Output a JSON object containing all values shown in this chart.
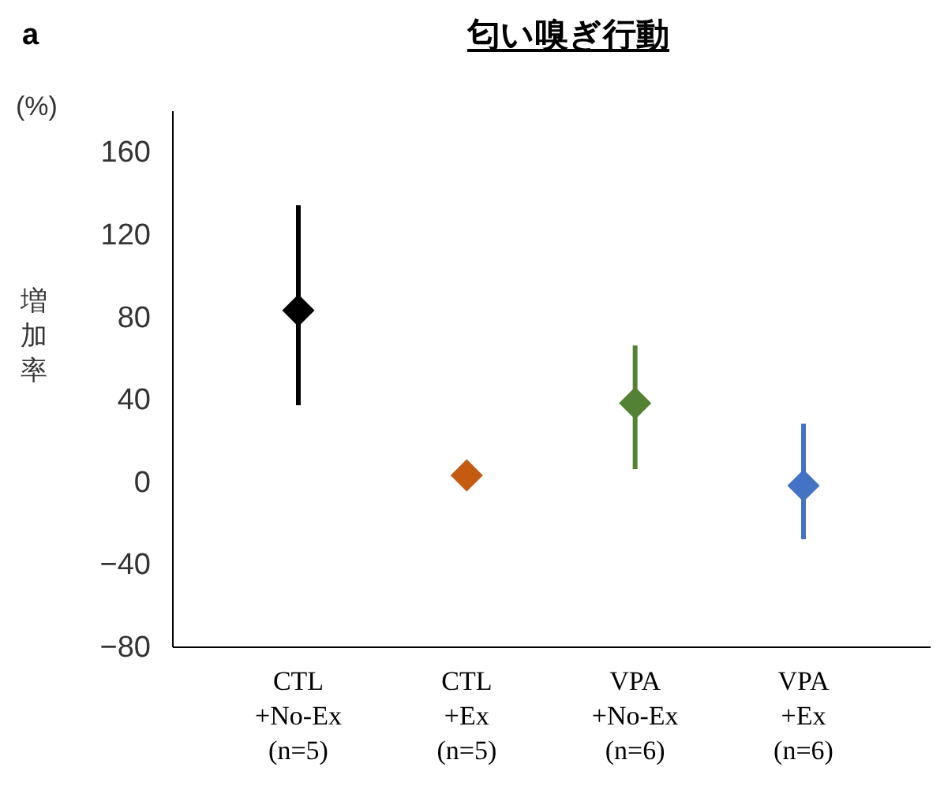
{
  "chart_data": {
    "type": "scatter",
    "title": "匂い嗅ぎ行動",
    "ylabel": "増加率",
    "annotations": [
      "a",
      "(%)"
    ],
    "categories": [
      "CTL\n+No-Ex\n(n=5)",
      "CTL\n+Ex\n(n=5)",
      "VPA\n+No-Ex\n(n=6)",
      "VPA\n+Ex\n(n=6)"
    ],
    "values": [
      83,
      3,
      38,
      -2
    ],
    "errors": [
      [
        37,
        134
      ],
      null,
      [
        6,
        66
      ],
      [
        -28,
        28
      ]
    ],
    "colors": [
      "#000000",
      "#c55a11",
      "#548235",
      "#4472c4"
    ],
    "ylim": [
      -80,
      180
    ],
    "yticks": [
      -80,
      -40,
      0,
      40,
      80,
      120,
      160
    ],
    "marker": "diamond",
    "grid": false
  }
}
